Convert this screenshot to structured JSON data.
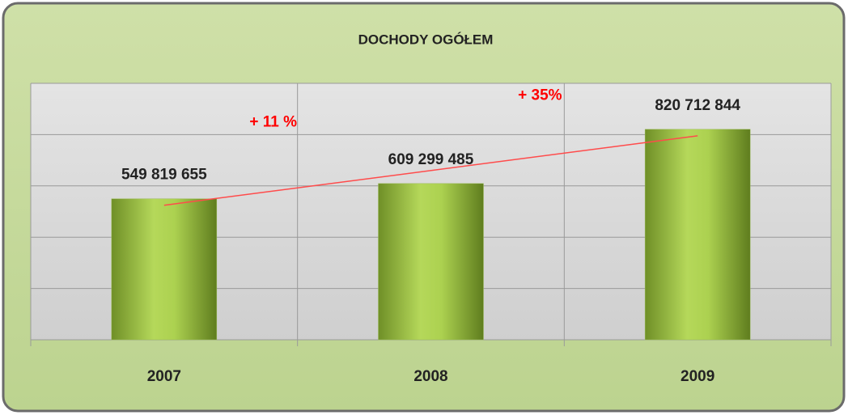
{
  "chart_data": {
    "type": "bar",
    "title": "DOCHODY OGÓŁEM",
    "categories": [
      "2007",
      "2008",
      "2009"
    ],
    "values": [
      549819655,
      609299485,
      820712844
    ],
    "value_labels": [
      "549 819 655",
      "609 299 485",
      "820 712 844"
    ],
    "color": "#9bbb59",
    "ylim": [
      0,
      1000000000
    ],
    "yticks": [
      0,
      200000000,
      400000000,
      600000000,
      800000000,
      1000000000
    ],
    "grid": true,
    "annotations": [
      "+ 11 %",
      "+ 35%"
    ],
    "annotation_color": "#ff0000",
    "trend_color": "#ff4b4b"
  }
}
